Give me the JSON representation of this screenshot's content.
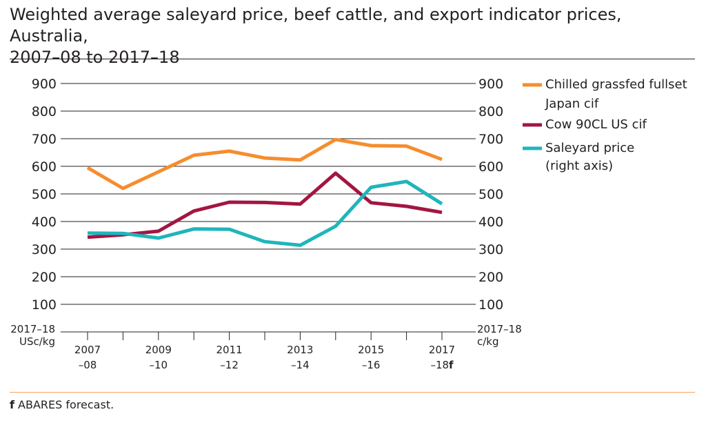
{
  "title_line1": "Weighted average saleyard price, beef cattle, and export indicator prices, Australia,",
  "title_line2": "2007–08 to 2017–18",
  "footnote": {
    "marker": "f",
    "text": " ABARES forecast."
  },
  "chart_data": {
    "type": "line",
    "categories": [
      "2007–08",
      "2008–09",
      "2009–10",
      "2010–11",
      "2011–12",
      "2012–13",
      "2013–14",
      "2014–15",
      "2015–16",
      "2016–17",
      "2017–18f"
    ],
    "x_tick_labels": [
      {
        "index": 0,
        "line1": "2007",
        "line2": "–08"
      },
      {
        "index": 2,
        "line1": "2009",
        "line2": "–10"
      },
      {
        "index": 4,
        "line1": "2011",
        "line2": "–12"
      },
      {
        "index": 6,
        "line1": "2013",
        "line2": "–14"
      },
      {
        "index": 8,
        "line1": "2015",
        "line2": "–16"
      },
      {
        "index": 10,
        "line1": "2017",
        "line2": "–18",
        "suffix": "f"
      }
    ],
    "left_axis": {
      "unit_line1": "2017–18",
      "unit_line2": "USc/kg",
      "ticks": [
        "100",
        "200",
        "300",
        "400",
        "500",
        "600",
        "700",
        "800",
        "900"
      ],
      "ylim": [
        0,
        900
      ]
    },
    "right_axis": {
      "unit_line1": "2017–18",
      "unit_line2": "c/kg",
      "ticks": [
        "100",
        "200",
        "300",
        "400",
        "500",
        "600",
        "700",
        "800",
        "900"
      ],
      "ylim": [
        0,
        900
      ]
    },
    "grid": true,
    "legend_position": "right",
    "series": [
      {
        "name_line1": "Chilled grassfed fullset",
        "name_line2": "Japan cif",
        "color": "#f68d2e",
        "axis": "left",
        "values": [
          595,
          520,
          580,
          640,
          655,
          630,
          623,
          697,
          675,
          673,
          625
        ]
      },
      {
        "name_line1": "Cow 90CL US cif",
        "name_line2": "",
        "color": "#a31641",
        "axis": "left",
        "values": [
          343,
          352,
          365,
          438,
          470,
          469,
          463,
          575,
          468,
          455,
          433
        ]
      },
      {
        "name_line1": "Saleyard price",
        "name_line2": "(right axis)",
        "color": "#1fb5bb",
        "axis": "right",
        "values": [
          358,
          357,
          340,
          373,
          372,
          327,
          314,
          383,
          524,
          545,
          464
        ]
      }
    ]
  }
}
